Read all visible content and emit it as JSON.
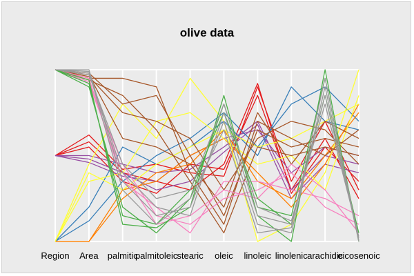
{
  "chart_data": {
    "type": "parallel-coordinates",
    "title": "olive data",
    "axes": [
      "Region",
      "Area",
      "palmitic",
      "palmitoleic",
      "stearic",
      "oleic",
      "linoleic",
      "linolenic",
      "arachidic",
      "eicosenoic"
    ],
    "value_scale": "each axis scaled 0 (bottom) to 1 (top)",
    "grid": true,
    "legend": "none",
    "series": [
      {
        "color": "#e41a1c",
        "values": [
          0.5,
          0.62,
          0.42,
          0.45,
          0.4,
          0.38,
          0.9,
          0.35,
          0.7,
          0.3
        ]
      },
      {
        "color": "#e41a1c",
        "values": [
          0.5,
          0.55,
          0.35,
          0.28,
          0.45,
          0.42,
          0.85,
          0.3,
          0.6,
          0.25
        ]
      },
      {
        "color": "#e41a1c",
        "values": [
          0.5,
          0.58,
          0.4,
          0.35,
          0.3,
          0.45,
          0.92,
          0.28,
          0.55,
          0.35
        ]
      },
      {
        "color": "#984ea3",
        "values": [
          0.5,
          0.5,
          0.45,
          0.4,
          0.42,
          0.55,
          0.7,
          0.3,
          0.5,
          0.45
        ]
      },
      {
        "color": "#984ea3",
        "values": [
          0.5,
          0.46,
          0.38,
          0.35,
          0.5,
          0.6,
          0.65,
          0.4,
          0.55,
          0.5
        ]
      },
      {
        "color": "#984ea3",
        "values": [
          0.5,
          0.48,
          0.4,
          0.3,
          0.35,
          0.52,
          0.68,
          0.25,
          0.45,
          0.4
        ]
      },
      {
        "color": "#377eb8",
        "values": [
          0.0,
          0.12,
          0.35,
          0.5,
          0.6,
          0.75,
          0.55,
          0.8,
          0.9,
          0.7
        ]
      },
      {
        "color": "#377eb8",
        "values": [
          0.0,
          0.2,
          0.55,
          0.45,
          0.55,
          0.7,
          0.5,
          0.9,
          0.7,
          0.65
        ]
      },
      {
        "color": "#ff7f00",
        "values": [
          0.0,
          0.0,
          0.3,
          0.35,
          0.5,
          0.6,
          0.4,
          0.2,
          0.45,
          0.8
        ]
      },
      {
        "color": "#ff7f00",
        "values": [
          0.0,
          0.0,
          0.25,
          0.4,
          0.45,
          0.65,
          0.35,
          0.25,
          0.5,
          0.75
        ]
      },
      {
        "color": "#ffff33",
        "values": [
          0.0,
          0.45,
          0.8,
          0.6,
          0.95,
          0.7,
          0.0,
          0.1,
          0.4,
          1.0
        ]
      },
      {
        "color": "#ffff33",
        "values": [
          0.0,
          0.35,
          0.4,
          0.7,
          0.75,
          0.6,
          0.45,
          0.5,
          0.3,
          0.85
        ]
      },
      {
        "color": "#ffff33",
        "values": [
          0.0,
          0.4,
          0.3,
          0.45,
          0.55,
          0.65,
          0.55,
          0.6,
          0.7,
          0.8
        ]
      },
      {
        "color": "#a65628",
        "values": [
          1.0,
          0.98,
          0.8,
          0.85,
          0.5,
          0.15,
          0.65,
          0.55,
          0.6,
          0.55
        ]
      },
      {
        "color": "#a65628",
        "values": [
          1.0,
          0.95,
          0.95,
          0.9,
          0.4,
          0.1,
          0.7,
          0.6,
          0.5,
          0.65
        ]
      },
      {
        "color": "#a65628",
        "values": [
          1.0,
          0.96,
          0.75,
          0.7,
          0.6,
          0.3,
          0.6,
          0.7,
          0.65,
          0.45
        ]
      },
      {
        "color": "#a65628",
        "values": [
          1.0,
          0.97,
          0.6,
          0.55,
          0.45,
          0.2,
          0.75,
          0.45,
          0.7,
          0.6
        ]
      },
      {
        "color": "#a65628",
        "values": [
          1.0,
          0.94,
          0.85,
          0.65,
          0.35,
          0.05,
          0.55,
          0.5,
          0.55,
          0.5
        ]
      },
      {
        "color": "#f781bf",
        "values": [
          1.0,
          0.93,
          0.45,
          0.15,
          0.1,
          0.25,
          0.3,
          0.4,
          0.2,
          0.1
        ]
      },
      {
        "color": "#f781bf",
        "values": [
          1.0,
          0.92,
          0.4,
          0.1,
          0.15,
          0.3,
          0.25,
          0.45,
          0.3,
          0.05
        ]
      },
      {
        "color": "#f781bf",
        "values": [
          1.0,
          0.95,
          0.35,
          0.2,
          0.05,
          0.35,
          0.35,
          0.3,
          0.25,
          0.15
        ]
      },
      {
        "color": "#4daf4a",
        "values": [
          1.0,
          0.9,
          0.2,
          0.05,
          0.25,
          0.8,
          0.2,
          0.15,
          0.95,
          0.0
        ]
      },
      {
        "color": "#4daf4a",
        "values": [
          1.0,
          0.92,
          0.15,
          0.1,
          0.3,
          0.75,
          0.25,
          0.1,
          0.85,
          0.05
        ]
      },
      {
        "color": "#4daf4a",
        "values": [
          1.0,
          0.94,
          0.1,
          0.08,
          0.2,
          0.85,
          0.15,
          0.0,
          1.0,
          0.0
        ]
      },
      {
        "color": "#999999",
        "values": [
          1.0,
          1.0,
          0.35,
          0.15,
          0.2,
          0.7,
          0.1,
          0.05,
          0.9,
          0.0
        ]
      },
      {
        "color": "#999999",
        "values": [
          1.0,
          0.98,
          0.4,
          0.2,
          0.15,
          0.75,
          0.15,
          0.1,
          0.85,
          0.02
        ]
      },
      {
        "color": "#999999",
        "values": [
          1.0,
          0.99,
          0.3,
          0.1,
          0.25,
          0.65,
          0.05,
          0.08,
          0.95,
          0.01
        ]
      },
      {
        "color": "#999999",
        "values": [
          1.0,
          0.97,
          0.45,
          0.25,
          0.3,
          0.8,
          0.2,
          0.12,
          0.8,
          0.03
        ]
      }
    ]
  }
}
